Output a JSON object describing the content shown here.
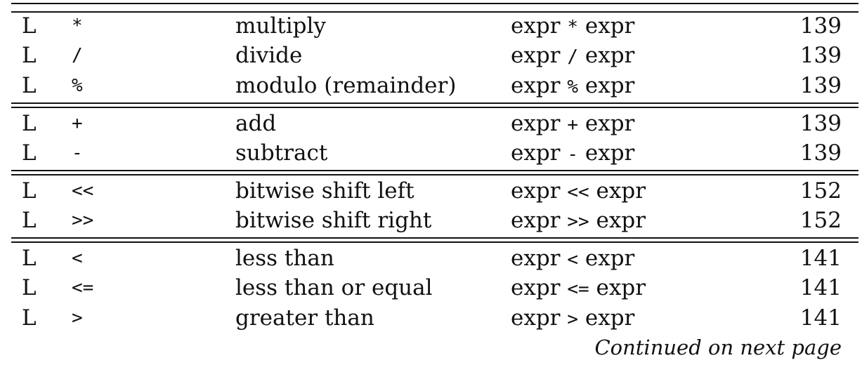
{
  "rows": [
    {
      "assoc": "L",
      "op": "*",
      "desc": "multiply",
      "usage_left": "expr",
      "usage_op": "*",
      "usage_right": "expr",
      "page": "139"
    },
    {
      "assoc": "L",
      "op": "/",
      "desc": "divide",
      "usage_left": "expr",
      "usage_op": "/",
      "usage_right": "expr",
      "page": "139"
    },
    {
      "assoc": "L",
      "op": "%",
      "desc": "modulo (remainder)",
      "usage_left": "expr",
      "usage_op": "%",
      "usage_right": "expr",
      "page": "139"
    },
    {
      "assoc": "L",
      "op": "+",
      "desc": "add",
      "usage_left": "expr",
      "usage_op": "+",
      "usage_right": "expr",
      "page": "139"
    },
    {
      "assoc": "L",
      "op": "-",
      "desc": "subtract",
      "usage_left": "expr",
      "usage_op": "-",
      "usage_right": "expr",
      "page": "139"
    },
    {
      "assoc": "L",
      "op": "<<",
      "desc": "bitwise shift left",
      "usage_left": "expr",
      "usage_op": "<<",
      "usage_right": "expr",
      "page": "152"
    },
    {
      "assoc": "L",
      "op": ">>",
      "desc": "bitwise shift right",
      "usage_left": "expr",
      "usage_op": ">>",
      "usage_right": "expr",
      "page": "152"
    },
    {
      "assoc": "L",
      "op": "<",
      "desc": "less than",
      "usage_left": "expr",
      "usage_op": "<",
      "usage_right": "expr",
      "page": "141"
    },
    {
      "assoc": "L",
      "op": "<=",
      "desc": "less than or equal",
      "usage_left": "expr",
      "usage_op": "<=",
      "usage_right": "expr",
      "page": "141"
    },
    {
      "assoc": "L",
      "op": ">",
      "desc": "greater than",
      "usage_left": "expr",
      "usage_op": ">",
      "usage_right": "expr",
      "page": "141"
    }
  ],
  "footer": {
    "text": "Continued on next page"
  }
}
